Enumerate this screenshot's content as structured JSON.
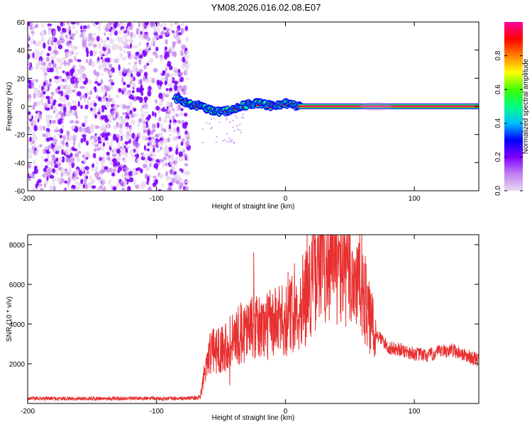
{
  "title": "YM08.2026.016.02.08.E07",
  "chart_data": [
    {
      "type": "heatmap",
      "name": "spectrogram",
      "xlabel": "Height of straight line (km)",
      "ylabel": "Frequency (Hz)",
      "xlim": [
        -200,
        150
      ],
      "ylim": [
        -60,
        60
      ],
      "x_ticks": [
        "-200",
        "-100",
        "0",
        "100"
      ],
      "x_tick_values": [
        -200,
        -100,
        0,
        100
      ],
      "y_ticks": [
        "60",
        "40",
        "20",
        "0",
        "-20",
        "-40",
        "-60"
      ],
      "y_tick_values": [
        60,
        40,
        20,
        0,
        -20,
        -40,
        -60
      ],
      "noise_region_x": [
        -200,
        -75
      ],
      "signal_trace": {
        "x": [
          -85,
          -80,
          -75,
          -70,
          -65,
          -60,
          -55,
          -50,
          -45,
          -40,
          -35,
          -30,
          -25,
          -20,
          -15,
          -10,
          -5,
          0,
          5,
          10,
          150
        ],
        "freq": [
          6,
          4,
          2,
          0,
          1,
          -2,
          -3,
          -4,
          -3,
          -2,
          0,
          1,
          2,
          2,
          1,
          0,
          1,
          2,
          1,
          0,
          0
        ]
      },
      "colorbar": {
        "label": "Normalized spectral amplitude",
        "range": [
          0,
          1
        ],
        "ticks": [
          "0.0",
          "0.2",
          "0.4",
          "0.6",
          "0.8"
        ],
        "tick_values": [
          0,
          0.2,
          0.4,
          0.6,
          0.8
        ],
        "stops": [
          "#e8d8f0",
          "#c080f0",
          "#8000ff",
          "#0000ff",
          "#00c0ff",
          "#00ff80",
          "#40ff00",
          "#ffff00",
          "#ff8000",
          "#ff0000",
          "#ff00a0"
        ]
      }
    },
    {
      "type": "line",
      "name": "snr",
      "xlabel": "Height of straight line (km)",
      "ylabel": "SNR (10 * v/v)",
      "xlim": [
        -200,
        150
      ],
      "ylim": [
        0,
        8500
      ],
      "x_ticks": [
        "-200",
        "-100",
        "0",
        "100"
      ],
      "x_tick_values": [
        -200,
        -100,
        0,
        100
      ],
      "y_ticks": [
        "2000",
        "4000",
        "6000",
        "8000"
      ],
      "y_tick_values": [
        2000,
        4000,
        6000,
        8000
      ],
      "color": "#e83030",
      "envelope": {
        "x": [
          -200,
          -170,
          -140,
          -110,
          -80,
          -66,
          -63,
          -60,
          -50,
          -40,
          -35,
          -30,
          -25,
          -20,
          -10,
          0,
          5,
          10,
          15,
          20,
          25,
          30,
          35,
          40,
          45,
          50,
          55,
          60,
          65,
          70,
          75,
          80,
          90,
          100,
          110,
          120,
          130,
          140,
          150
        ],
        "y": [
          250,
          250,
          250,
          250,
          250,
          300,
          1500,
          2500,
          2800,
          3200,
          3500,
          3800,
          3700,
          3800,
          4000,
          4200,
          4500,
          4800,
          5500,
          6000,
          7000,
          7200,
          7500,
          7000,
          6800,
          6500,
          6200,
          5800,
          4200,
          3500,
          3200,
          2800,
          2700,
          2500,
          2400,
          2600,
          2700,
          2400,
          2200
        ]
      }
    }
  ]
}
